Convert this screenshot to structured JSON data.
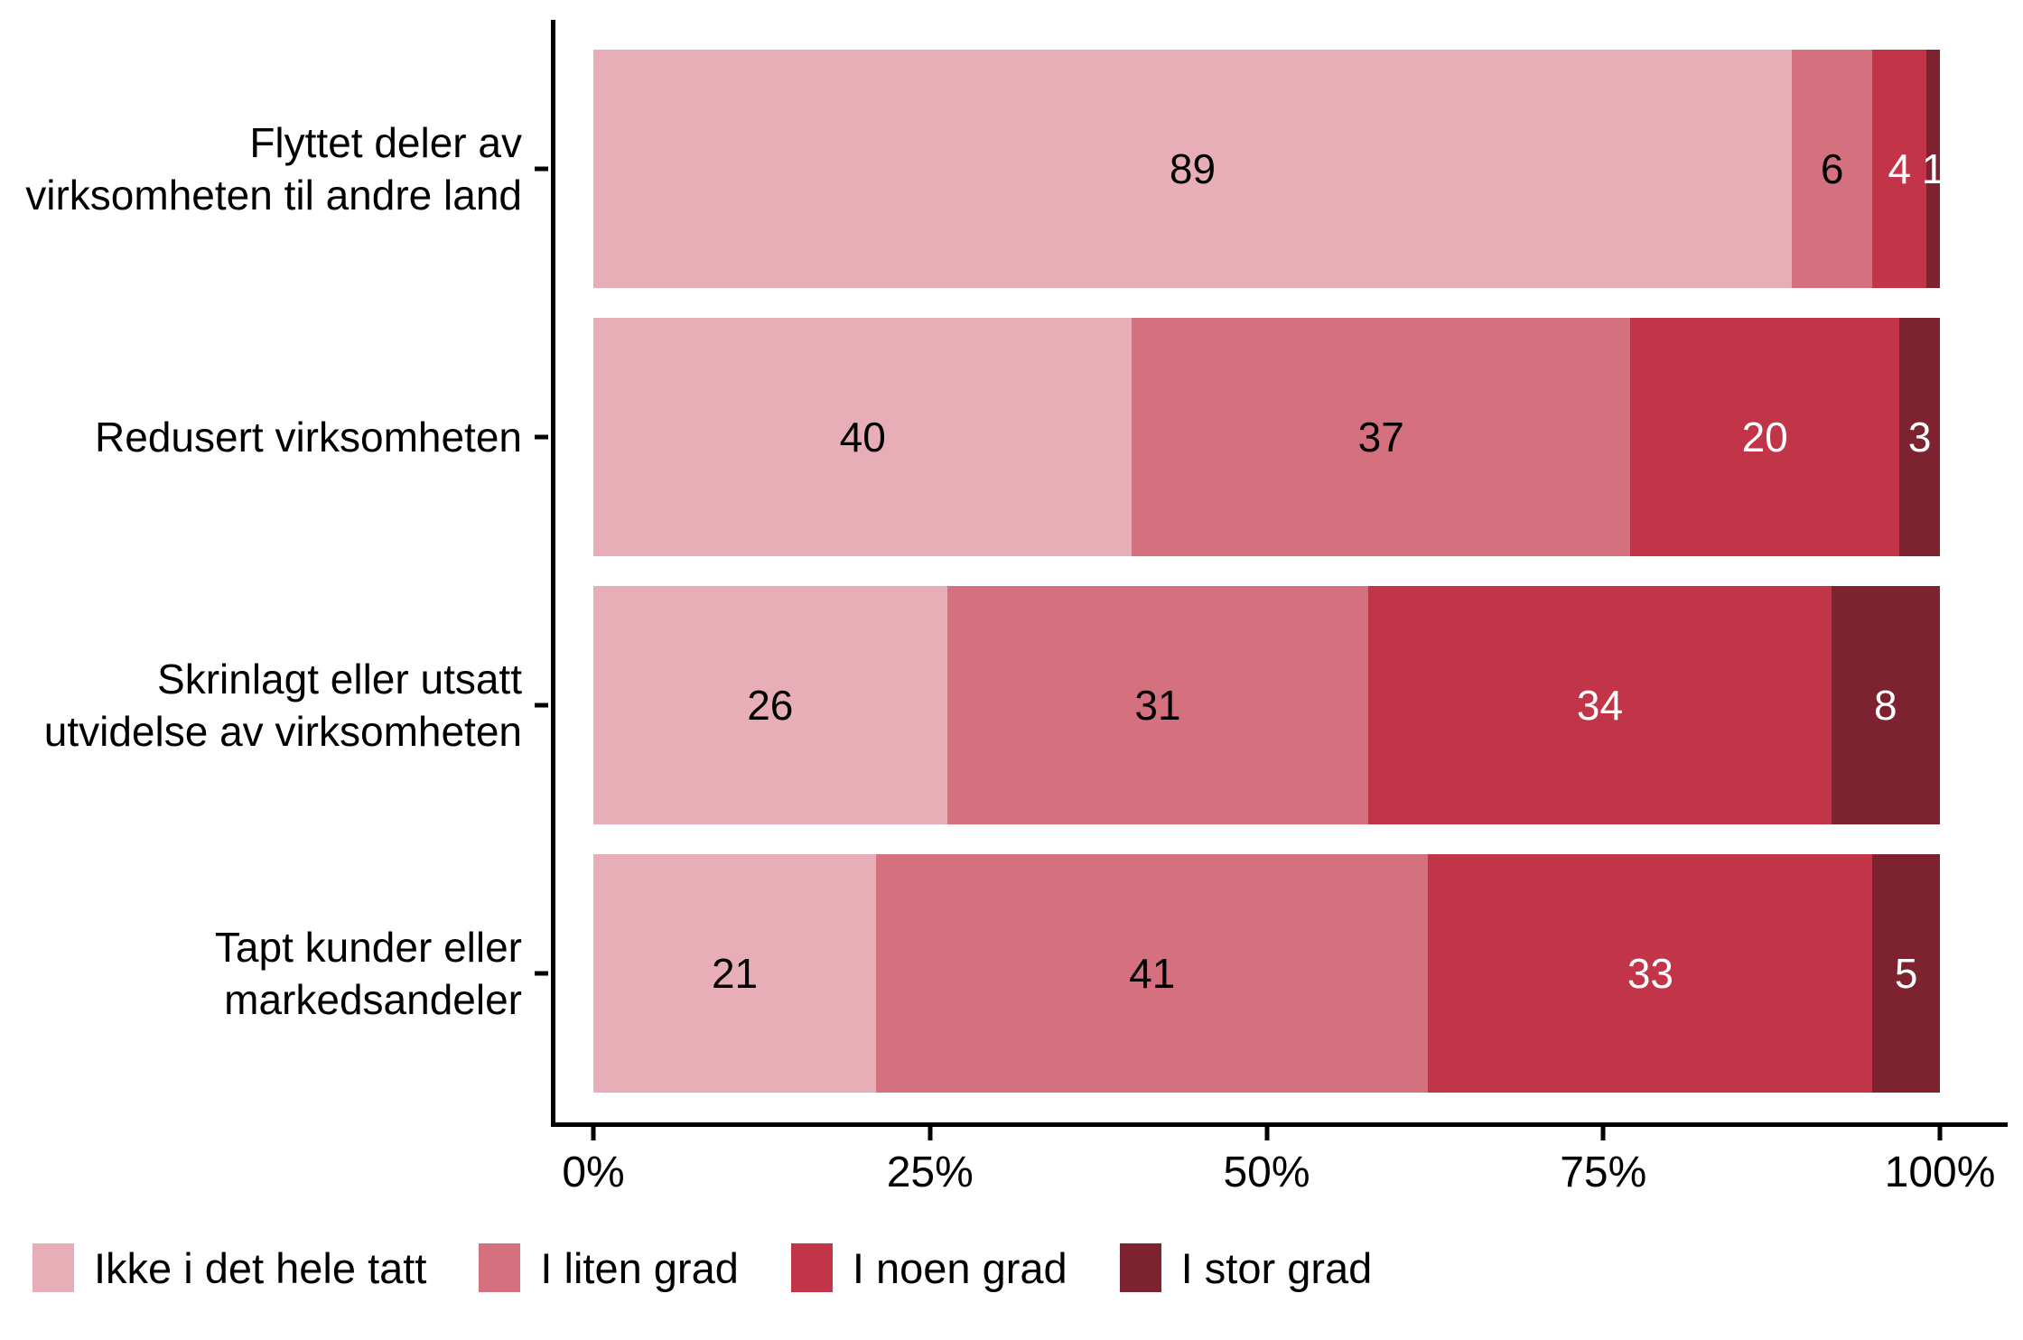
{
  "chart_data": {
    "type": "bar",
    "orientation": "horizontal",
    "stacked": true,
    "unit": "percent",
    "title": "",
    "categories": [
      "Flyttet deler av virksomheten til andre land",
      "Redusert virksomheten",
      "Skrinlagt eller utsatt utvidelse av virksomheten",
      "Tapt kunder eller markedsandeler"
    ],
    "series": [
      {
        "name": "Ikke i det hele tatt",
        "color": "#E8AEB7",
        "label_color": "#000000",
        "values": [
          89,
          40,
          26,
          21
        ]
      },
      {
        "name": "I liten grad",
        "color": "#D5707E",
        "label_color": "#000000",
        "values": [
          6,
          37,
          31,
          41
        ]
      },
      {
        "name": "I noen grad",
        "color": "#C23447",
        "label_color": "#FFFFFF",
        "values": [
          4,
          20,
          34,
          33
        ]
      },
      {
        "name": "I stor grad",
        "color": "#7D232F",
        "label_color": "#FFFFFF",
        "values": [
          1,
          3,
          8,
          5
        ]
      }
    ],
    "x_axis": {
      "range": [
        0,
        100
      ],
      "tick_labels": [
        "0%",
        "25%",
        "50%",
        "75%",
        "100%"
      ],
      "tick_values": [
        0,
        25,
        50,
        75,
        100
      ]
    },
    "grid": false,
    "legend_position": "bottom",
    "legend": [
      "Ikke i det hele tatt",
      "I liten grad",
      "I noen grad",
      "I stor grad"
    ]
  }
}
